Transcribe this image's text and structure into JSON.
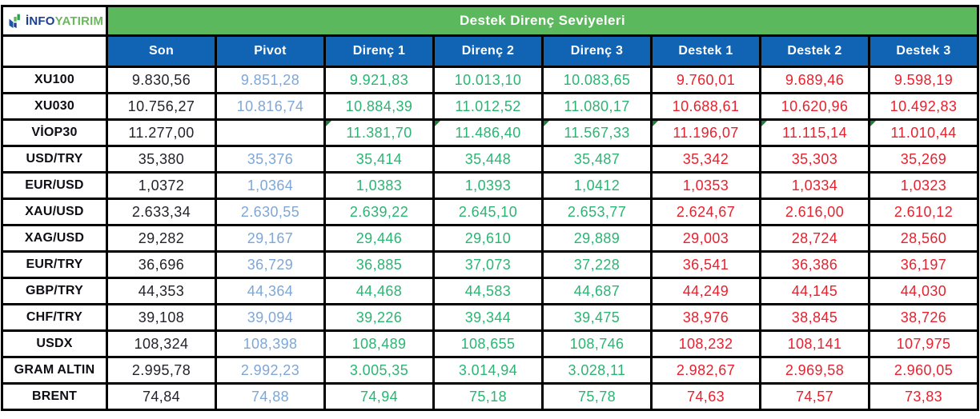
{
  "title": "Destek Direnç Seviyeleri",
  "logo": {
    "prefix": "İNFO",
    "suffix": "YATIRIM"
  },
  "colors": {
    "header_green": "#5cb85c",
    "header_blue": "#1164b4",
    "logo_blue": "#1b3f8f",
    "logo_green": "#6db65f",
    "son_text": "#23232b",
    "pivot_text": "#7ea7d8",
    "resistance_text": "#2bb573",
    "support_text": "#e8212e",
    "corner_mark": "#1e7e34"
  },
  "chart_data": {
    "type": "table",
    "title": "Destek Direnç Seviyeleri",
    "columns": [
      "Son",
      "Pivot",
      "Direnç 1",
      "Direnç 2",
      "Direnç 3",
      "Destek 1",
      "Destek 2",
      "Destek 3"
    ],
    "column_keys": [
      "son",
      "pivot",
      "direnc-1",
      "direnc-2",
      "direnc-3",
      "destek-1",
      "destek-2",
      "destek-3"
    ],
    "column_styles": [
      "son",
      "pivot",
      "res",
      "res",
      "res",
      "sup",
      "sup",
      "sup"
    ],
    "rows": [
      {
        "label": "XU100",
        "values": [
          "9.830,56",
          "9.851,28",
          "9.921,83",
          "10.013,10",
          "10.083,65",
          "9.760,01",
          "9.689,46",
          "9.598,19"
        ]
      },
      {
        "label": "XU030",
        "values": [
          "10.756,27",
          "10.816,74",
          "10.884,39",
          "11.012,52",
          "11.080,17",
          "10.688,61",
          "10.620,96",
          "10.492,83"
        ]
      },
      {
        "label": "VİOP30",
        "values": [
          "11.277,00",
          "",
          "11.381,70",
          "11.486,40",
          "11.567,33",
          "11.196,07",
          "11.115,14",
          "11.010,44"
        ],
        "corner_marks": [
          2,
          3,
          4,
          5,
          6,
          7
        ]
      },
      {
        "label": "USD/TRY",
        "values": [
          "35,380",
          "35,376",
          "35,414",
          "35,448",
          "35,487",
          "35,342",
          "35,303",
          "35,269"
        ]
      },
      {
        "label": "EUR/USD",
        "values": [
          "1,0372",
          "1,0364",
          "1,0383",
          "1,0393",
          "1,0412",
          "1,0353",
          "1,0334",
          "1,0323"
        ]
      },
      {
        "label": "XAU/USD",
        "values": [
          "2.633,34",
          "2.630,55",
          "2.639,22",
          "2.645,10",
          "2.653,77",
          "2.624,67",
          "2.616,00",
          "2.610,12"
        ]
      },
      {
        "label": "XAG/USD",
        "values": [
          "29,282",
          "29,167",
          "29,446",
          "29,610",
          "29,889",
          "29,003",
          "28,724",
          "28,560"
        ]
      },
      {
        "label": "EUR/TRY",
        "values": [
          "36,696",
          "36,729",
          "36,885",
          "37,073",
          "37,228",
          "36,541",
          "36,386",
          "36,197"
        ]
      },
      {
        "label": "GBP/TRY",
        "values": [
          "44,353",
          "44,364",
          "44,468",
          "44,583",
          "44,687",
          "44,249",
          "44,145",
          "44,030"
        ]
      },
      {
        "label": "CHF/TRY",
        "values": [
          "39,108",
          "39,094",
          "39,226",
          "39,344",
          "39,475",
          "38,976",
          "38,845",
          "38,726"
        ]
      },
      {
        "label": "USDX",
        "values": [
          "108,324",
          "108,398",
          "108,489",
          "108,655",
          "108,746",
          "108,232",
          "108,141",
          "107,975"
        ]
      },
      {
        "label": "GRAM ALTIN",
        "values": [
          "2.995,78",
          "2.992,23",
          "3.005,35",
          "3.014,94",
          "3.028,11",
          "2.982,67",
          "2.969,58",
          "2.960,05"
        ]
      },
      {
        "label": "BRENT",
        "values": [
          "74,84",
          "74,88",
          "74,94",
          "75,18",
          "75,78",
          "74,63",
          "74,57",
          "73,83"
        ]
      }
    ]
  }
}
